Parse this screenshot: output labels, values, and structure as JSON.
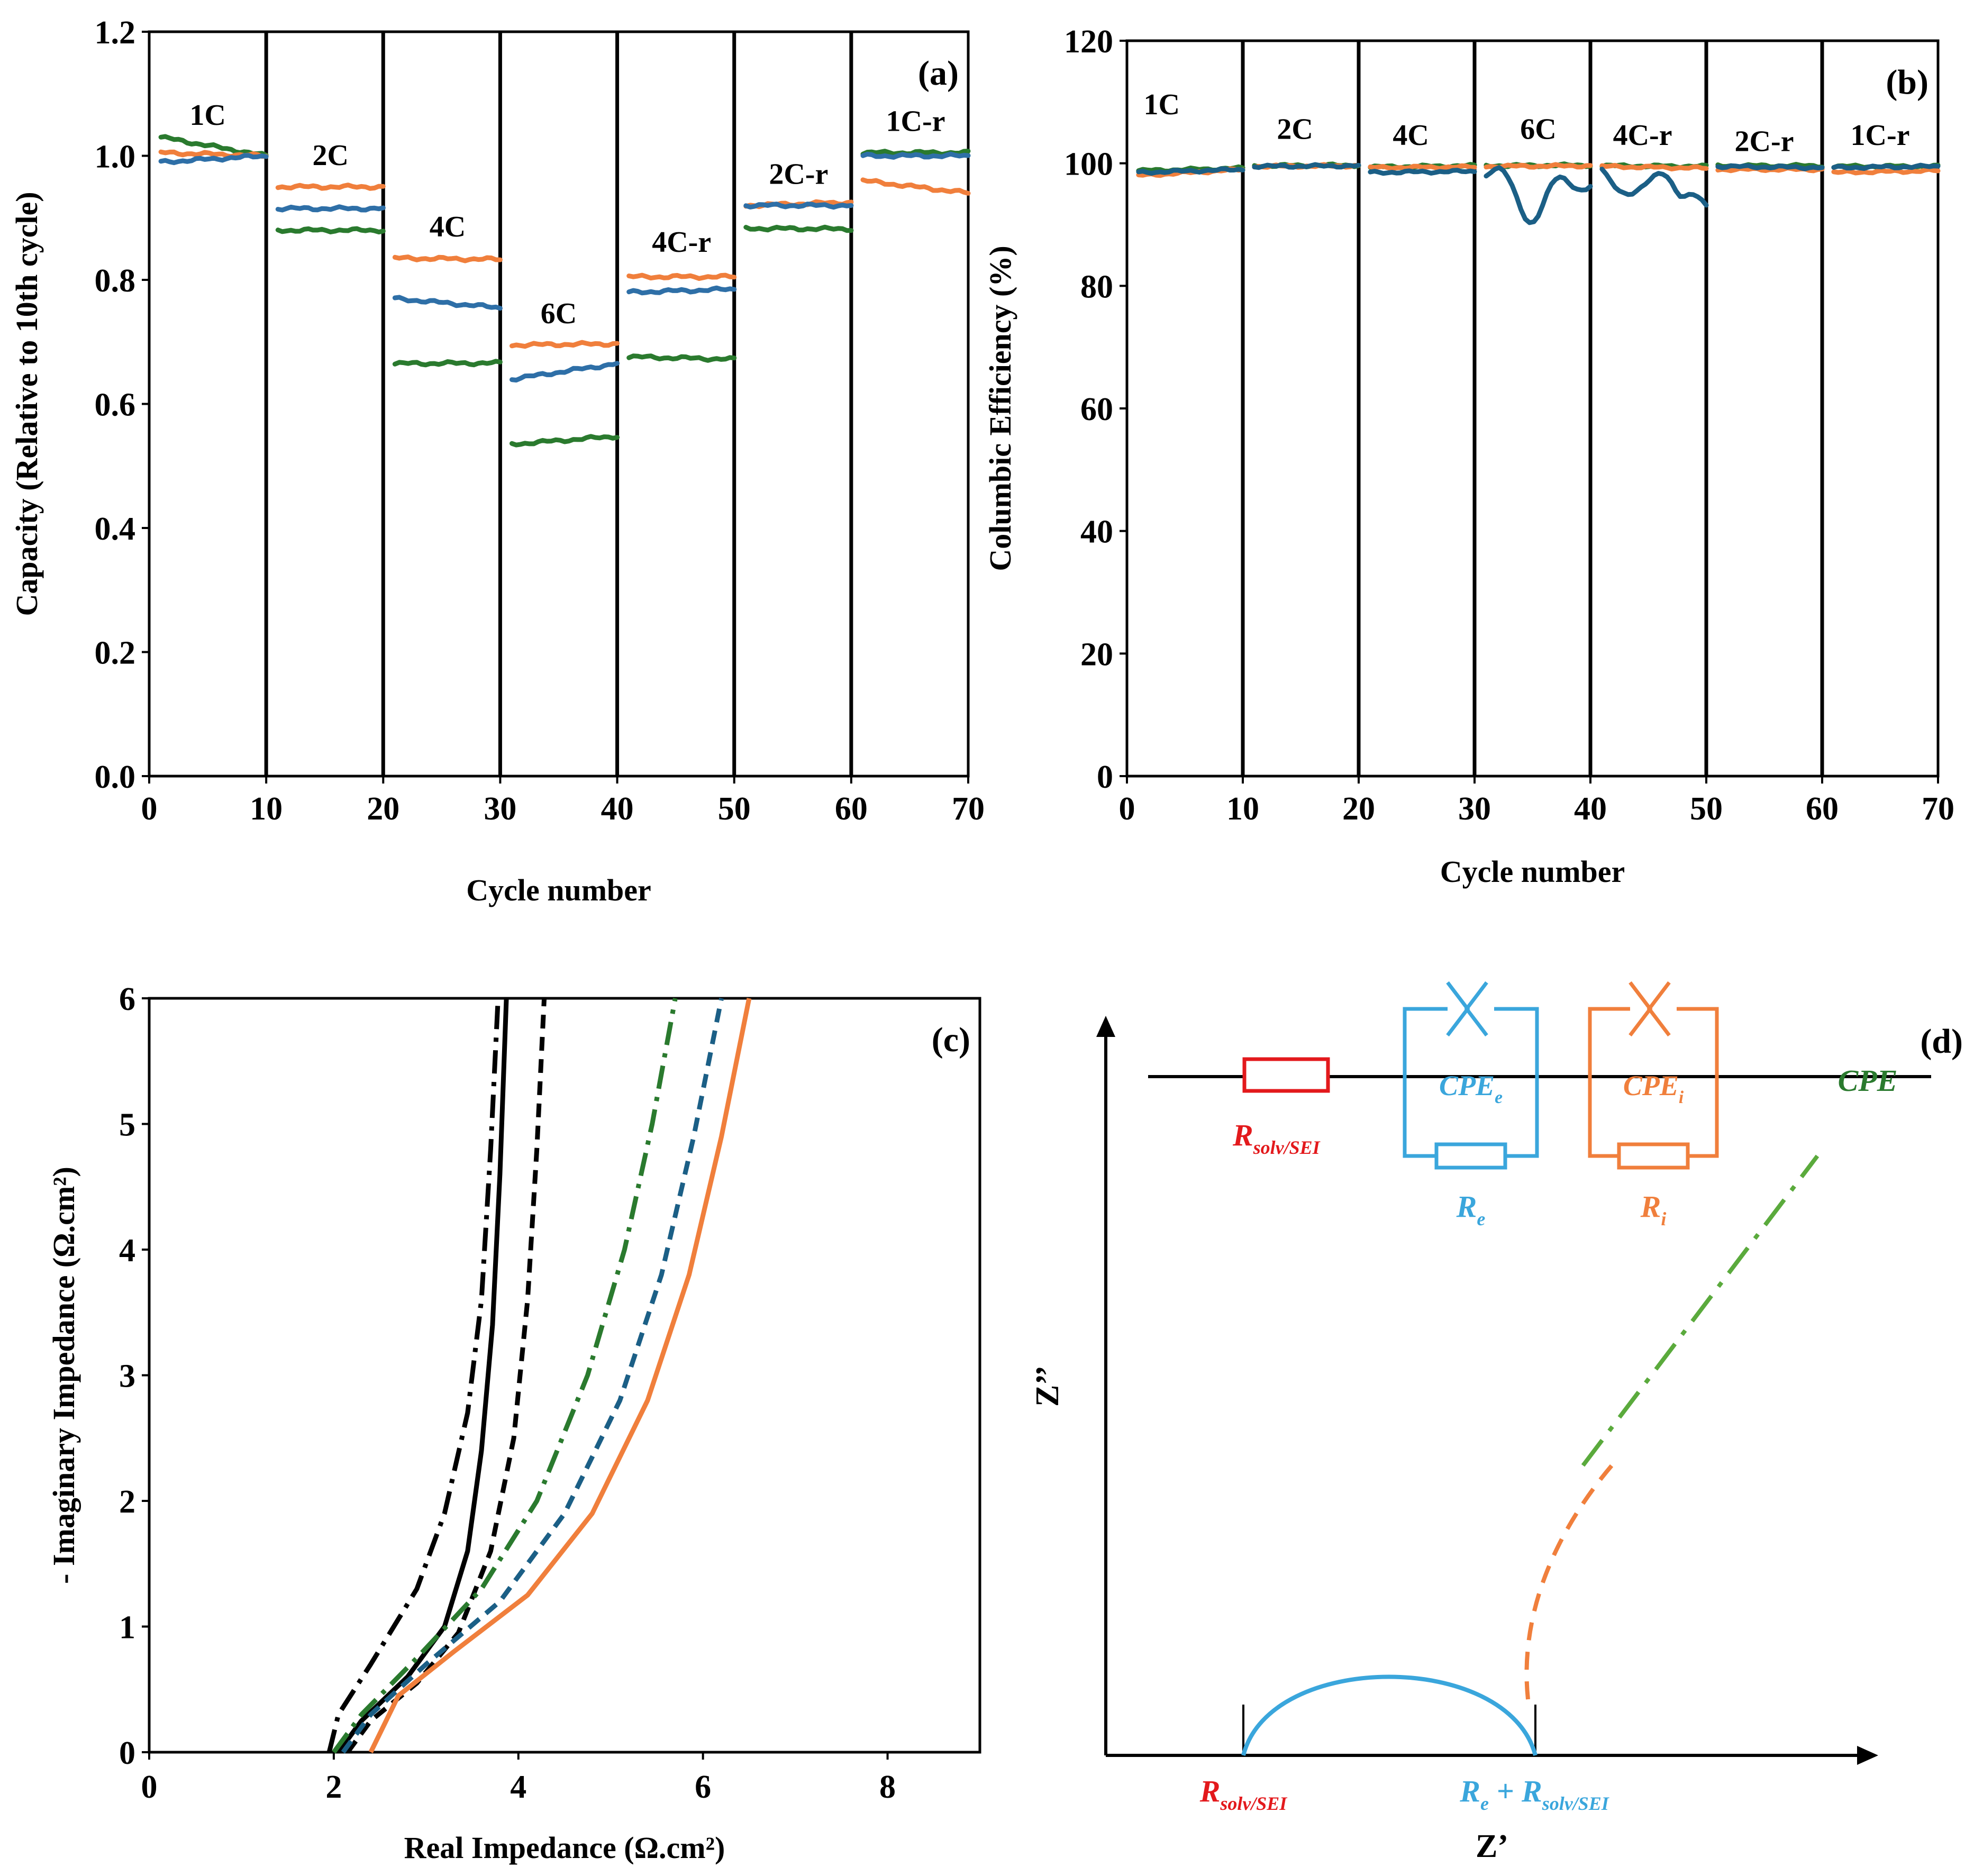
{
  "colors": {
    "blue": "#2e6fa7",
    "orange": "#f07f3c",
    "green": "#2a7a2e",
    "black": "#000000",
    "red": "#e3191c",
    "cyan": "#3aa6dc",
    "lightgreen": "#5aaa3c",
    "tealblue": "#1b5f86"
  },
  "chart_data": [
    {
      "id": "a",
      "type": "line",
      "panel_label": "(a)",
      "xlabel": "Cycle number",
      "ylabel": "Capacity (Relative to 10th cycle)",
      "xlim": [
        0,
        70
      ],
      "ylim": [
        0,
        1.2
      ],
      "x_ticks": [
        0,
        10,
        20,
        30,
        40,
        50,
        60,
        70
      ],
      "y_ticks": [
        0.0,
        0.2,
        0.4,
        0.6,
        0.8,
        1.0,
        1.2
      ],
      "x_tick_labels": [
        "0",
        "10",
        "20",
        "30",
        "40",
        "50",
        "60",
        "70"
      ],
      "y_tick_labels": [
        "0.0",
        "0.2",
        "0.4",
        "0.6",
        "0.8",
        "1.0",
        "1.2"
      ],
      "separators": [
        10,
        20,
        30,
        40,
        50,
        60
      ],
      "segments": [
        {
          "label": "1C",
          "x": [
            1,
            10
          ],
          "label_x": 5,
          "label_y": 1.05,
          "orange": [
            1.005,
            1.0
          ],
          "blue": [
            0.99,
            1.0
          ],
          "green": [
            1.03,
            1.0
          ]
        },
        {
          "label": "2C",
          "x": [
            11,
            20
          ],
          "label_x": 15.5,
          "label_y": 0.985,
          "orange": [
            0.95,
            0.95
          ],
          "blue": [
            0.915,
            0.915
          ],
          "green": [
            0.88,
            0.88
          ]
        },
        {
          "label": "4C",
          "x": [
            21,
            30
          ],
          "label_x": 25.5,
          "label_y": 0.87,
          "orange": [
            0.835,
            0.833
          ],
          "blue": [
            0.77,
            0.755
          ],
          "green": [
            0.665,
            0.666
          ]
        },
        {
          "label": "6C",
          "x": [
            31,
            40
          ],
          "label_x": 35,
          "label_y": 0.73,
          "orange": [
            0.695,
            0.697
          ],
          "blue": [
            0.64,
            0.665
          ],
          "green": [
            0.535,
            0.548
          ]
        },
        {
          "label": "4C-r",
          "x": [
            41,
            50
          ],
          "label_x": 45.5,
          "label_y": 0.845,
          "orange": [
            0.805,
            0.805
          ],
          "blue": [
            0.78,
            0.785
          ],
          "green": [
            0.676,
            0.672
          ]
        },
        {
          "label": "2C-r",
          "x": [
            51,
            60
          ],
          "label_x": 55.5,
          "label_y": 0.955,
          "orange": [
            0.92,
            0.925
          ],
          "blue": [
            0.92,
            0.92
          ],
          "green": [
            0.883,
            0.882
          ]
        },
        {
          "label": "1C-r",
          "x": [
            61,
            70
          ],
          "label_x": 65.5,
          "label_y": 1.04,
          "orange": [
            0.96,
            0.94
          ],
          "blue": [
            1.0,
            1.0
          ],
          "green": [
            1.005,
            1.005
          ]
        }
      ]
    },
    {
      "id": "b",
      "type": "line",
      "panel_label": "(b)",
      "xlabel": "Cycle number",
      "ylabel": "Columbic Efficiency (%)",
      "xlim": [
        0,
        70
      ],
      "ylim": [
        0,
        120
      ],
      "x_ticks": [
        0,
        10,
        20,
        30,
        40,
        50,
        60,
        70
      ],
      "y_ticks": [
        0,
        20,
        40,
        60,
        80,
        100,
        120
      ],
      "x_tick_labels": [
        "0",
        "10",
        "20",
        "30",
        "40",
        "50",
        "60",
        "70"
      ],
      "y_tick_labels": [
        "0",
        "20",
        "40",
        "60",
        "80",
        "100",
        "120"
      ],
      "separators": [
        10,
        20,
        30,
        40,
        50,
        60
      ],
      "segments": [
        {
          "label": "1C",
          "x": [
            1,
            10
          ],
          "label_x": 3,
          "label_y": 108,
          "orange": [
            98,
            99
          ],
          "blue": [
            98.5,
            99
          ],
          "green": [
            98.8,
            99.2
          ]
        },
        {
          "label": "2C",
          "x": [
            11,
            20
          ],
          "label_x": 14.5,
          "label_y": 104,
          "orange": [
            99.5,
            99.6
          ],
          "blue": [
            99.5,
            99.6
          ],
          "green": [
            99.6,
            99.7
          ]
        },
        {
          "label": "4C",
          "x": [
            21,
            30
          ],
          "label_x": 24.5,
          "label_y": 103,
          "orange": [
            99.3,
            99.4
          ],
          "blue": [
            98.5,
            98.7
          ],
          "green": [
            99.4,
            99.6
          ]
        },
        {
          "label": "6C",
          "x": [
            31,
            40
          ],
          "label_x": 35.5,
          "label_y": 104,
          "orange": [
            99.5,
            99.6
          ],
          "blue": [
            98,
            97
          ],
          "green": [
            99.6,
            99.7
          ]
        },
        {
          "label": "4C-r",
          "x": [
            41,
            50
          ],
          "label_x": 44.5,
          "label_y": 103,
          "orange": [
            99.5,
            99.2
          ],
          "blue": [
            99,
            95
          ],
          "green": [
            99.6,
            99.5
          ]
        },
        {
          "label": "2C-r",
          "x": [
            51,
            60
          ],
          "label_x": 55,
          "label_y": 102,
          "orange": [
            99,
            99
          ],
          "blue": [
            99.5,
            99.3
          ],
          "green": [
            99.6,
            99.6
          ]
        },
        {
          "label": "1C-r",
          "x": [
            61,
            70
          ],
          "label_x": 65,
          "label_y": 103,
          "orange": [
            98.5,
            98.8
          ],
          "blue": [
            99.3,
            99.5
          ],
          "green": [
            99.5,
            99.5
          ]
        }
      ]
    },
    {
      "id": "c",
      "type": "line",
      "panel_label": "(c)",
      "xlabel": "Real Impedance (Ω.cm²)",
      "ylabel": "- Imaginary Impedance (Ω.cm²)",
      "xlim": [
        0,
        9
      ],
      "ylim": [
        0,
        6
      ],
      "x_ticks": [
        0,
        2,
        4,
        6,
        8
      ],
      "y_ticks": [
        0,
        1,
        2,
        3,
        4,
        5,
        6
      ],
      "x_tick_labels": [
        "0",
        "2",
        "4",
        "6",
        "8"
      ],
      "y_tick_labels": [
        "0",
        "1",
        "2",
        "3",
        "4",
        "5",
        "6"
      ],
      "series": [
        {
          "name": "black-dashdot",
          "color": "black",
          "dash": "dashdot",
          "x": [
            1.95,
            2.05,
            2.4,
            2.9,
            3.2,
            3.45,
            3.6,
            3.7,
            3.78
          ],
          "y": [
            0,
            0.3,
            0.7,
            1.3,
            1.9,
            2.7,
            3.6,
            4.8,
            6
          ]
        },
        {
          "name": "black-solid",
          "color": "black",
          "dash": "solid",
          "x": [
            2.05,
            2.3,
            2.8,
            3.2,
            3.45,
            3.6,
            3.72,
            3.8,
            3.87
          ],
          "y": [
            0,
            0.25,
            0.6,
            1.0,
            1.6,
            2.4,
            3.4,
            4.6,
            6
          ]
        },
        {
          "name": "black-dash",
          "color": "black",
          "dash": "dash",
          "x": [
            2.15,
            2.4,
            2.9,
            3.35,
            3.7,
            3.95,
            4.1,
            4.2,
            4.28
          ],
          "y": [
            0,
            0.25,
            0.55,
            0.95,
            1.6,
            2.5,
            3.6,
            4.8,
            6
          ]
        },
        {
          "name": "green-dashdot",
          "color": "green",
          "dash": "dashdot",
          "x": [
            2.0,
            2.3,
            2.9,
            3.6,
            4.2,
            4.75,
            5.15,
            5.45,
            5.7
          ],
          "y": [
            0,
            0.3,
            0.75,
            1.3,
            2.0,
            3.0,
            4.0,
            5.0,
            6
          ]
        },
        {
          "name": "blue-dash",
          "color": "tealblue",
          "dash": "dash",
          "x": [
            2.1,
            2.4,
            3.0,
            3.8,
            4.5,
            5.1,
            5.55,
            5.9,
            6.2
          ],
          "y": [
            0,
            0.3,
            0.7,
            1.2,
            1.9,
            2.8,
            3.8,
            4.9,
            6
          ]
        },
        {
          "name": "orange-solid",
          "color": "orange",
          "dash": "solid",
          "x": [
            2.4,
            2.7,
            3.3,
            4.1,
            4.8,
            5.4,
            5.85,
            6.2,
            6.5
          ],
          "y": [
            0,
            0.45,
            0.8,
            1.25,
            1.9,
            2.8,
            3.8,
            4.9,
            6
          ]
        }
      ]
    },
    {
      "id": "d",
      "type": "diagram",
      "panel_label": "(d)",
      "xlabel": "Z’",
      "ylabel": "Z’’",
      "circuit": {
        "r1": {
          "base": "R",
          "sub": "solv/SEI"
        },
        "cpe_e": {
          "base": "CPE",
          "sub": "e"
        },
        "r_e": {
          "base": "R",
          "sub": "e"
        },
        "cpe_i": {
          "base": "CPE",
          "sub": "i"
        },
        "r_i": {
          "base": "R",
          "sub": "i"
        },
        "cpe": "CPE"
      },
      "axis_marks": {
        "left": {
          "base": "R",
          "sub": "solv/SEI"
        },
        "right": {
          "prefix_base": "R",
          "prefix_sub": "e",
          "join": " + ",
          "base": "R",
          "sub": "solv/SEI"
        }
      }
    }
  ]
}
